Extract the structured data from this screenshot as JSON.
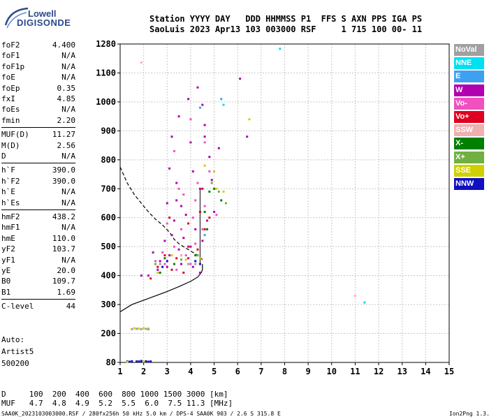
{
  "logo": {
    "line1": "Lowell",
    "line2": "DIGISONDE"
  },
  "header": {
    "line1": "Station YYYY DAY   DDD HHMMSS P1  FFS S AXN PPS IGA PS",
    "line2": "SaoLuis 2023 Apr13 103 003000 RSF     1 715 100 00- 11"
  },
  "params": [
    {
      "name": "foF2",
      "value": "4.400"
    },
    {
      "name": "foF1",
      "value": "N/A"
    },
    {
      "name": "foF1p",
      "value": "N/A"
    },
    {
      "name": "foE",
      "value": "N/A"
    },
    {
      "name": "foEp",
      "value": "0.35"
    },
    {
      "name": "fxI",
      "value": "4.85"
    },
    {
      "name": "foEs",
      "value": "N/A"
    },
    {
      "name": "fmin",
      "value": "2.20"
    },
    {
      "name": "MUF(D)",
      "value": "11.27"
    },
    {
      "name": "M(D)",
      "value": "2.56"
    },
    {
      "name": "D",
      "value": "N/A"
    },
    {
      "name": "h`F",
      "value": "390.0"
    },
    {
      "name": "h`F2",
      "value": "390.0"
    },
    {
      "name": "h`E",
      "value": "N/A"
    },
    {
      "name": "h`Es",
      "value": "N/A"
    },
    {
      "name": "hmF2",
      "value": "438.2"
    },
    {
      "name": "hmF1",
      "value": "N/A"
    },
    {
      "name": "hmE",
      "value": "110.0"
    },
    {
      "name": "yF2",
      "value": "103.7"
    },
    {
      "name": "yF1",
      "value": "N/A"
    },
    {
      "name": "yE",
      "value": "20.0"
    },
    {
      "name": "B0",
      "value": "109.7"
    },
    {
      "name": "B1",
      "value": "1.69"
    },
    {
      "name": "C-level",
      "value": "44"
    }
  ],
  "auto": {
    "label": "Auto:",
    "artist": "Artist5",
    "version": "500200"
  },
  "legend": [
    {
      "label": "NoVal",
      "color": "#a0a0a0"
    },
    {
      "label": "NNE",
      "color": "#00e0f0"
    },
    {
      "label": "E",
      "color": "#40a0f0"
    },
    {
      "label": "W",
      "color": "#b000b0"
    },
    {
      "label": "Vo-",
      "color": "#f050c0"
    },
    {
      "label": "Vo+",
      "color": "#e00020"
    },
    {
      "label": "SSW",
      "color": "#f0b0b0"
    },
    {
      "label": "X-",
      "color": "#008000"
    },
    {
      "label": "X+",
      "color": "#70b040"
    },
    {
      "label": "SSE",
      "color": "#d0d000"
    },
    {
      "label": "NNW",
      "color": "#1010c0"
    }
  ],
  "muf_table": {
    "d_line": "D     100  200  400  600  800 1000 1500 3000 [km]",
    "muf_line": "MUF   4.7  4.8  4.9  5.2  5.5  6.0  7.5 11.3 [MHz]"
  },
  "footer": {
    "left": "SAA0K_2023103003000.RSF / 280fx256h 50 kHz 5.0 km / DPS-4 SAA0K 903 / 2.6 S 315.8 E",
    "right": "Ion2Png 1.3.17"
  },
  "chart_data": {
    "type": "scatter",
    "title": "",
    "xlabel": "",
    "ylabel": "",
    "xlim": [
      1,
      15
    ],
    "ylim": [
      80,
      1280
    ],
    "x_ticks": [
      1,
      2,
      3,
      4,
      5,
      6,
      7,
      8,
      9,
      10,
      11,
      12,
      13,
      14,
      15
    ],
    "y_ticks": [
      80,
      200,
      300,
      400,
      500,
      600,
      700,
      800,
      900,
      1000,
      1100,
      1280
    ],
    "series": [
      {
        "color": "#b000b0",
        "points": [
          [
            3.2,
            880
          ],
          [
            3.5,
            950
          ],
          [
            3.9,
            1010
          ],
          [
            4.3,
            1050
          ],
          [
            4.5,
            990
          ],
          [
            6.1,
            1080
          ],
          [
            3.1,
            770
          ],
          [
            4.0,
            860
          ],
          [
            4.6,
            920
          ],
          [
            3.4,
            720
          ],
          [
            4.1,
            760
          ],
          [
            4.8,
            810
          ],
          [
            5.2,
            840
          ],
          [
            3.0,
            650
          ],
          [
            3.6,
            640
          ],
          [
            4.4,
            700
          ],
          [
            4.9,
            730
          ],
          [
            3.3,
            590
          ],
          [
            3.8,
            610
          ],
          [
            4.2,
            560
          ],
          [
            4.7,
            590
          ],
          [
            5.0,
            620
          ],
          [
            2.9,
            520
          ],
          [
            3.2,
            540
          ],
          [
            3.7,
            530
          ],
          [
            4.0,
            500
          ],
          [
            4.5,
            520
          ],
          [
            3.1,
            470
          ],
          [
            3.5,
            490
          ],
          [
            3.9,
            460
          ],
          [
            4.3,
            470
          ],
          [
            2.7,
            450
          ],
          [
            3.0,
            430
          ],
          [
            3.6,
            440
          ],
          [
            4.1,
            430
          ],
          [
            4.4,
            410
          ],
          [
            2.4,
            480
          ],
          [
            2.6,
            420
          ],
          [
            2.2,
            400
          ],
          [
            1.9,
            400
          ],
          [
            3.4,
            660
          ],
          [
            4.6,
            880
          ],
          [
            6.4,
            880
          ]
        ]
      },
      {
        "color": "#f050c0",
        "points": [
          [
            3.3,
            830
          ],
          [
            4.0,
            940
          ],
          [
            4.6,
            860
          ],
          [
            3.5,
            700
          ],
          [
            4.2,
            660
          ],
          [
            4.8,
            760
          ],
          [
            3.0,
            580
          ],
          [
            3.6,
            560
          ],
          [
            4.1,
            600
          ],
          [
            4.6,
            640
          ],
          [
            2.8,
            480
          ],
          [
            3.3,
            500
          ],
          [
            3.8,
            470
          ],
          [
            4.2,
            510
          ],
          [
            4.5,
            560
          ],
          [
            2.9,
            440
          ],
          [
            3.4,
            420
          ],
          [
            4.0,
            440
          ],
          [
            2.5,
            450
          ],
          [
            3.7,
            680
          ],
          [
            4.3,
            720
          ],
          [
            5.1,
            610
          ]
        ]
      },
      {
        "color": "#e00020",
        "points": [
          [
            3.1,
            600
          ],
          [
            3.9,
            580
          ],
          [
            4.4,
            620
          ],
          [
            2.9,
            470
          ],
          [
            3.4,
            460
          ],
          [
            3.9,
            500
          ],
          [
            4.3,
            490
          ],
          [
            4.6,
            560
          ],
          [
            2.6,
            430
          ],
          [
            3.2,
            420
          ],
          [
            3.7,
            410
          ],
          [
            2.3,
            390
          ],
          [
            4.8,
            600
          ],
          [
            4.5,
            700
          ]
        ]
      },
      {
        "color": "#1010c0",
        "points": [
          [
            1.3,
            84
          ],
          [
            1.5,
            85
          ],
          [
            1.7,
            84
          ],
          [
            1.9,
            86
          ],
          [
            2.1,
            85
          ],
          [
            2.3,
            84
          ],
          [
            1.4,
            83
          ],
          [
            1.8,
            84
          ],
          [
            2.2,
            83
          ],
          [
            3.0,
            450
          ],
          [
            3.6,
            470
          ],
          [
            4.2,
            450
          ],
          [
            2.8,
            430
          ],
          [
            4.4,
            440
          ]
        ]
      },
      {
        "color": "#008000",
        "points": [
          [
            4.8,
            690
          ],
          [
            5.0,
            700
          ],
          [
            5.3,
            660
          ],
          [
            4.6,
            620
          ],
          [
            3.3,
            440
          ],
          [
            4.2,
            470
          ],
          [
            2.9,
            460
          ],
          [
            2.7,
            410
          ],
          [
            4.7,
            560
          ]
        ]
      },
      {
        "color": "#70b040",
        "points": [
          [
            4.9,
            720
          ],
          [
            5.2,
            690
          ],
          [
            3.6,
            455
          ],
          [
            4.3,
            470
          ],
          [
            2.5,
            440
          ],
          [
            5.5,
            650
          ]
        ]
      },
      {
        "color": "#d0d000",
        "points": [
          [
            1.6,
            218
          ],
          [
            1.8,
            217
          ],
          [
            2.0,
            218
          ],
          [
            2.2,
            217
          ],
          [
            4.6,
            780
          ],
          [
            5.0,
            760
          ],
          [
            5.1,
            700
          ],
          [
            3.2,
            470
          ],
          [
            3.8,
            455
          ],
          [
            4.4,
            460
          ],
          [
            5.4,
            690
          ],
          [
            6.5,
            940
          ],
          [
            2.6,
            410
          ],
          [
            1.3,
            82
          ],
          [
            2.0,
            84
          ]
        ]
      },
      {
        "color": "#00e0f0",
        "points": [
          [
            7.8,
            1250
          ],
          [
            11.4,
            307
          ],
          [
            5.4,
            990
          ]
        ]
      },
      {
        "color": "#40a0f0",
        "points": [
          [
            5.3,
            1010
          ],
          [
            4.4,
            980
          ],
          [
            4.6,
            540
          ]
        ]
      },
      {
        "color": "#a0a0a0",
        "points": [
          [
            1.5,
            215
          ],
          [
            1.7,
            216
          ],
          [
            1.9,
            215
          ],
          [
            2.1,
            216
          ],
          [
            2.2,
            214
          ],
          [
            3.9,
            440
          ],
          [
            4.2,
            440
          ],
          [
            2.7,
            440
          ]
        ]
      },
      {
        "color": "#f0b0b0",
        "points": [
          [
            1.9,
            1165
          ],
          [
            11.0,
            330
          ],
          [
            3.6,
            470
          ]
        ]
      }
    ],
    "curves": [
      {
        "style": "dashed",
        "points": [
          [
            1.0,
            775
          ],
          [
            1.3,
            720
          ],
          [
            1.6,
            680
          ],
          [
            1.9,
            650
          ],
          [
            2.2,
            620
          ],
          [
            2.5,
            595
          ],
          [
            2.8,
            575
          ],
          [
            3.1,
            550
          ],
          [
            3.3,
            525
          ],
          [
            3.5,
            510
          ],
          [
            3.7,
            500
          ],
          [
            4.0,
            485
          ],
          [
            4.3,
            470
          ],
          [
            4.5,
            455
          ]
        ]
      },
      {
        "style": "solid",
        "points": [
          [
            1.0,
            275
          ],
          [
            1.5,
            300
          ],
          [
            2.0,
            315
          ],
          [
            2.5,
            330
          ],
          [
            3.0,
            345
          ],
          [
            3.5,
            362
          ],
          [
            4.0,
            380
          ],
          [
            4.3,
            395
          ],
          [
            4.45,
            410
          ],
          [
            4.5,
            420
          ],
          [
            4.5,
            440
          ]
        ]
      }
    ],
    "foF2_marker": [
      [
        4.4,
        440
      ],
      [
        4.4,
        700
      ]
    ]
  }
}
